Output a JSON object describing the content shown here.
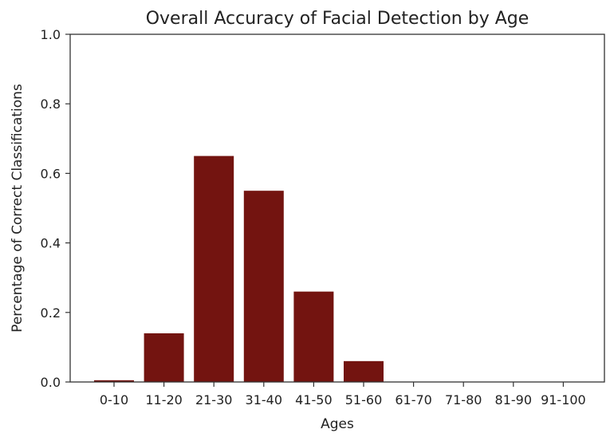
{
  "chart_data": {
    "type": "bar",
    "title": "Overall Accuracy of Facial Detection by Age",
    "xlabel": "Ages",
    "ylabel": "Percentage of Correct Classifications",
    "categories": [
      "0-10",
      "11-20",
      "21-30",
      "31-40",
      "41-50",
      "51-60",
      "61-70",
      "71-80",
      "81-90",
      "91-100"
    ],
    "values": [
      0.005,
      0.14,
      0.65,
      0.55,
      0.26,
      0.06,
      0,
      0,
      0,
      0
    ],
    "ylim": [
      0,
      1.0
    ],
    "yticks": [
      "0.0",
      "0.2",
      "0.4",
      "0.6",
      "0.8",
      "1.0"
    ],
    "grid": false,
    "bar_color": "#731410"
  }
}
